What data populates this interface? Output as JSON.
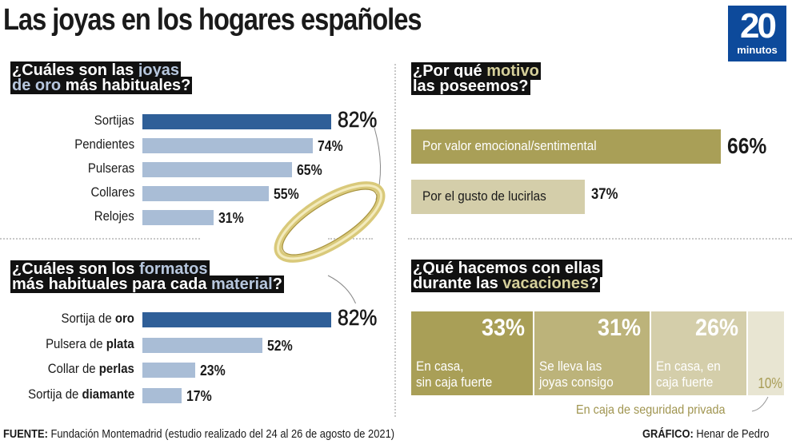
{
  "header": {
    "title": "Las joyas en los hogares españoles",
    "logo_number": "20",
    "logo_text": "minutos"
  },
  "colors": {
    "blue_dark": "#2f5f98",
    "blue_light": "#a9bdd6",
    "gold_dark": "#a99f57",
    "gold_mid": "#bcb37a",
    "gold_light": "#d4ceaa",
    "gold_pale": "#e8e5d2",
    "logo_blue": "#0d4a9b"
  },
  "q1": {
    "title_line1_a": "¿Cuáles son las ",
    "title_line1_b": "joyas",
    "title_line2_a": "de oro",
    "title_line2_b": " más habituales?"
  },
  "q2": {
    "title_line1_a": "¿Cuáles son los ",
    "title_line1_b": "formatos",
    "title_line2_a": "más habituales para cada ",
    "title_line2_b": "material",
    "title_line2_c": "?"
  },
  "q3": {
    "title_line1_a": "¿Por qué ",
    "title_line1_b": "motivo",
    "title_line2": "las poseemos?"
  },
  "q4": {
    "title_line1": "¿Qué hacemos con ellas",
    "title_line2_a": "durante las ",
    "title_line2_b": "vacaciones",
    "title_line2_c": "?",
    "callout": "En caja de seguridad privada"
  },
  "chart_data": [
    {
      "type": "bar",
      "title": "¿Cuáles son las joyas de oro más habituales?",
      "orientation": "horizontal",
      "categories": [
        "Sortijas",
        "Pendientes",
        "Pulseras",
        "Collares",
        "Relojes"
      ],
      "values": [
        82,
        74,
        65,
        55,
        31
      ],
      "labels": [
        "82%",
        "74%",
        "65%",
        "55%",
        "31%"
      ],
      "unit": "%"
    },
    {
      "type": "bar",
      "title": "¿Cuáles son los formatos más habituales para cada material?",
      "orientation": "horizontal",
      "categories": [
        "Sortija de oro",
        "Pulsera de plata",
        "Collar de perlas",
        "Sortija de diamante"
      ],
      "category_prefix": [
        "Sortija de ",
        "Pulsera de ",
        "Collar de ",
        "Sortija de "
      ],
      "category_bold": [
        "oro",
        "plata",
        "perlas",
        "diamante"
      ],
      "values": [
        82,
        52,
        23,
        17
      ],
      "labels": [
        "82%",
        "52%",
        "23%",
        "17%"
      ],
      "unit": "%"
    },
    {
      "type": "bar",
      "title": "¿Por qué motivo las poseemos?",
      "orientation": "horizontal",
      "categories": [
        "Por valor emocional/sentimental",
        "Por el gusto de lucirlas"
      ],
      "values": [
        66,
        37
      ],
      "labels": [
        "66%",
        "37%"
      ],
      "unit": "%"
    },
    {
      "type": "bar",
      "title": "¿Qué hacemos con ellas durante las vacaciones?",
      "orientation": "stacked-horizontal",
      "categories": [
        "En casa, sin caja fuerte",
        "Se lleva las joyas consigo",
        "En casa, en caja fuerte",
        "En caja de seguridad privada"
      ],
      "desc_line1": [
        "En casa,",
        "Se lleva las",
        "En casa, en",
        ""
      ],
      "desc_line2": [
        "sin caja fuerte",
        "joyas consigo",
        "caja fuerte",
        ""
      ],
      "values": [
        33,
        31,
        26,
        10
      ],
      "labels": [
        "33%",
        "31%",
        "26%",
        "10%"
      ],
      "unit": "%"
    }
  ],
  "footer": {
    "source_label": "FUENTE:",
    "source_text": " Fundación Montemadrid (estudio realizado del 24 al 26 de agosto de 2021)",
    "credit_label": "GRÁFICO:",
    "credit_text": " Henar de Pedro"
  }
}
